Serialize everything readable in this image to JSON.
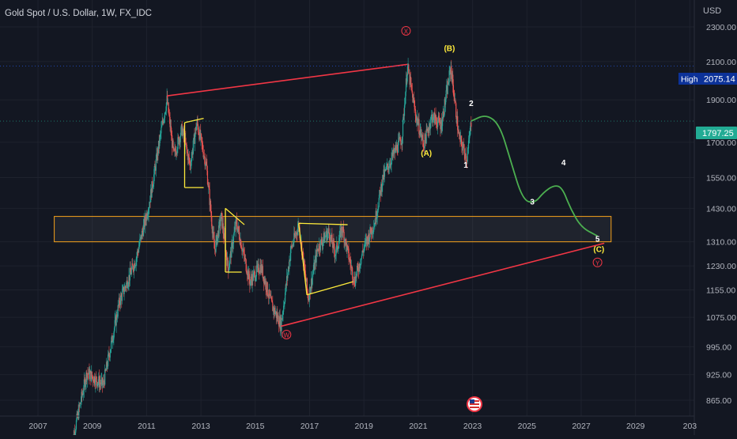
{
  "header": {
    "title": "Gold Spot / U.S. Dollar, 1W, FX_IDC",
    "currency": "USD"
  },
  "badges": {
    "high_label": "High",
    "high_value": "2075.14",
    "current_value": "1797.25"
  },
  "chart_data": {
    "type": "candlestick",
    "title": "Gold Spot / U.S. Dollar, 1W, FX_IDC",
    "ylabel": "USD",
    "ylim": [
      820,
      2420
    ],
    "xlim": [
      2006.2,
      2030.0
    ],
    "y_scale": "log",
    "y_ticks": [
      "2300.00",
      "2100.00",
      "1900.00",
      "1700.00",
      "1550.00",
      "1430.00",
      "1310.00",
      "1230.00",
      "1155.00",
      "1075.00",
      "995.00",
      "925.00",
      "865.00"
    ],
    "x_ticks": [
      "2007",
      "2009",
      "2011",
      "2013",
      "2015",
      "2017",
      "2019",
      "2021",
      "2023",
      "2025",
      "2027",
      "2029",
      "203"
    ],
    "grid": true,
    "colors": {
      "up": "#26a69a",
      "down": "#ef5350",
      "background": "#131722",
      "trendline": "#f23645",
      "projection": "#4caf50",
      "triangle": "#ffeb3b",
      "zone": "#f7a21b",
      "current_price": "#22ab94",
      "high_badge": "#0c3299"
    },
    "price_path": [
      [
        2008.2,
        760
      ],
      [
        2008.8,
        930
      ],
      [
        2009.4,
        900
      ],
      [
        2010.0,
        1120
      ],
      [
        2010.6,
        1250
      ],
      [
        2011.1,
        1450
      ],
      [
        2011.6,
        1800
      ],
      [
        2011.75,
        1900
      ],
      [
        2012.0,
        1640
      ],
      [
        2012.3,
        1760
      ],
      [
        2012.6,
        1600
      ],
      [
        2012.85,
        1790
      ],
      [
        2013.2,
        1600
      ],
      [
        2013.5,
        1280
      ],
      [
        2013.75,
        1400
      ],
      [
        2014.0,
        1220
      ],
      [
        2014.3,
        1380
      ],
      [
        2014.8,
        1180
      ],
      [
        2015.2,
        1230
      ],
      [
        2015.6,
        1110
      ],
      [
        2015.95,
        1055
      ],
      [
        2016.3,
        1280
      ],
      [
        2016.6,
        1370
      ],
      [
        2016.95,
        1130
      ],
      [
        2017.3,
        1290
      ],
      [
        2017.7,
        1345
      ],
      [
        2017.95,
        1270
      ],
      [
        2018.2,
        1360
      ],
      [
        2018.65,
        1180
      ],
      [
        2019.0,
        1290
      ],
      [
        2019.4,
        1380
      ],
      [
        2019.7,
        1550
      ],
      [
        2020.1,
        1650
      ],
      [
        2020.4,
        1720
      ],
      [
        2020.6,
        2075
      ],
      [
        2020.9,
        1830
      ],
      [
        2021.2,
        1690
      ],
      [
        2021.5,
        1820
      ],
      [
        2021.85,
        1780
      ],
      [
        2022.2,
        2070
      ],
      [
        2022.5,
        1720
      ],
      [
        2022.8,
        1630
      ],
      [
        2022.95,
        1797
      ]
    ],
    "projection": [
      [
        2022.95,
        1797
      ],
      [
        2023.5,
        1830
      ],
      [
        2024.0,
        1780
      ],
      [
        2024.4,
        1620
      ],
      [
        2024.85,
        1460
      ],
      [
        2025.3,
        1450
      ],
      [
        2025.6,
        1490
      ],
      [
        2026.0,
        1520
      ],
      [
        2026.3,
        1510
      ],
      [
        2026.6,
        1430
      ],
      [
        2027.0,
        1360
      ],
      [
        2027.6,
        1330
      ]
    ],
    "upper_trendline": [
      [
        2011.75,
        1920
      ],
      [
        2020.6,
        2085
      ]
    ],
    "lower_trendline": [
      [
        2015.95,
        1050
      ],
      [
        2027.85,
        1305
      ]
    ],
    "support_zone": {
      "low": 1310,
      "high": 1400,
      "x_from": 2007.6,
      "x_to": 2028.1
    },
    "triangles": [
      {
        "upper": [
          [
            2012.4,
            1790
          ],
          [
            2013.1,
            1810
          ]
        ],
        "lower": [
          [
            2012.4,
            1510
          ],
          [
            2013.1,
            1510
          ]
        ]
      },
      {
        "upper": [
          [
            2013.9,
            1430
          ],
          [
            2014.6,
            1370
          ]
        ],
        "lower": [
          [
            2013.9,
            1210
          ],
          [
            2014.5,
            1210
          ]
        ]
      },
      {
        "upper": [
          [
            2016.6,
            1375
          ],
          [
            2018.4,
            1370
          ]
        ],
        "lower": [
          [
            2016.9,
            1140
          ],
          [
            2018.6,
            1180
          ]
        ]
      }
    ],
    "wave_labels": [
      {
        "text": "X",
        "x": 2020.55,
        "y": 2260,
        "style": "circle-red"
      },
      {
        "text": "(B)",
        "x": 2022.15,
        "y": 2160,
        "style": "yellow"
      },
      {
        "text": "(A)",
        "x": 2021.3,
        "y": 1640,
        "style": "yellow"
      },
      {
        "text": "2",
        "x": 2022.95,
        "y": 1870,
        "style": "white"
      },
      {
        "text": "1",
        "x": 2022.75,
        "y": 1590,
        "style": "white"
      },
      {
        "text": "3",
        "x": 2025.2,
        "y": 1445,
        "style": "white"
      },
      {
        "text": "4",
        "x": 2026.35,
        "y": 1600,
        "style": "white"
      },
      {
        "text": "5",
        "x": 2027.6,
        "y": 1310,
        "style": "white"
      },
      {
        "text": "(C)",
        "x": 2027.65,
        "y": 1275,
        "style": "yellow"
      },
      {
        "text": "Y",
        "x": 2027.6,
        "y": 1232,
        "style": "circle-red"
      },
      {
        "text": "W",
        "x": 2016.15,
        "y": 1020,
        "style": "circle-red"
      }
    ]
  }
}
